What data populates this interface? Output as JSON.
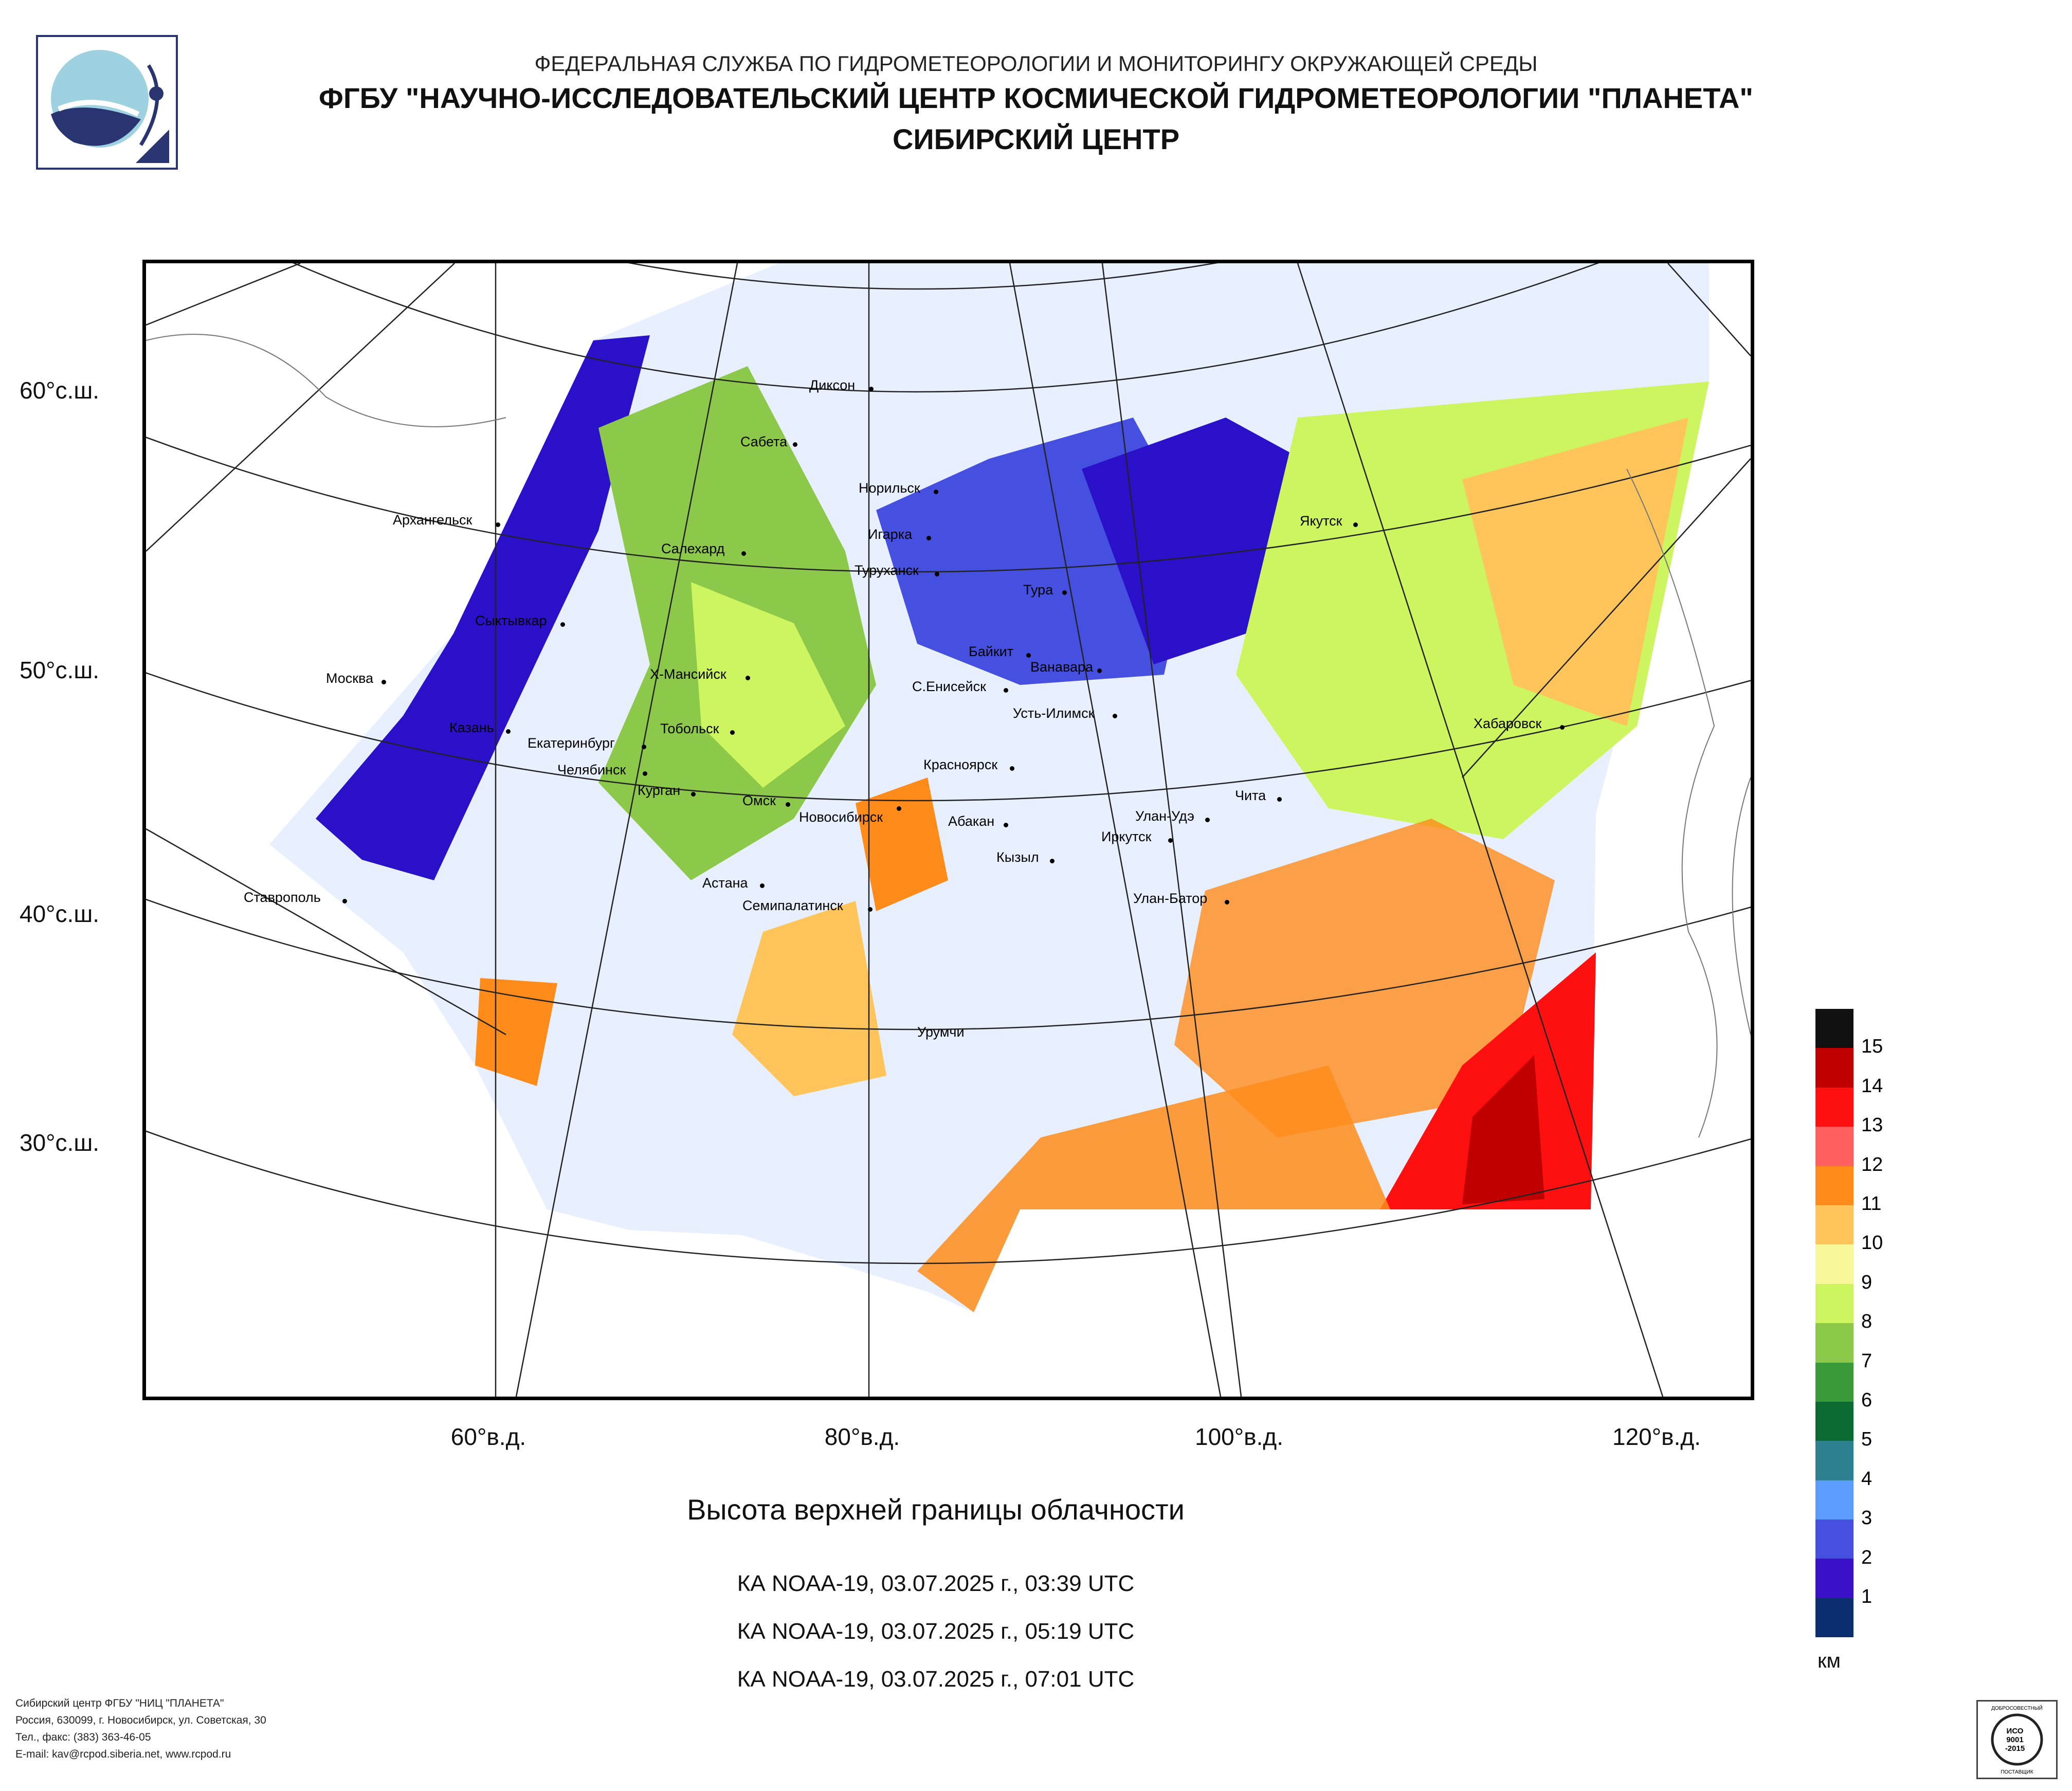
{
  "header": {
    "line1": "ФЕДЕРАЛЬНАЯ СЛУЖБА ПО ГИДРОМЕТЕОРОЛОГИИ И МОНИТОРИНГУ ОКРУЖАЮЩЕЙ СРЕДЫ",
    "line2": "ФГБУ \"НАУЧНО-ИССЛЕДОВАТЕЛЬСКИЙ ЦЕНТР КОСМИЧЕСКОЙ ГИДРОМЕТЕОРОЛОГИИ \"ПЛАНЕТА\"",
    "line3": "СИБИРСКИЙ ЦЕНТР"
  },
  "map": {
    "lat_labels": [
      "60°с.ш.",
      "50°с.ш.",
      "40°с.ш.",
      "30°с.ш."
    ],
    "lon_labels": [
      "60°в.д.",
      "80°в.д.",
      "100°в.д.",
      "120°в.д."
    ],
    "cities": [
      "Диксон",
      "Сабета",
      "Норильск",
      "Игарка",
      "Туруханск",
      "Тура",
      "Якутск",
      "Архангельск",
      "Салехард",
      "Сыктывкар",
      "Байкит",
      "Ванавара",
      "Х-Мансийск",
      "С.Енисейск",
      "Москва",
      "Усть-Илимск",
      "Хабаровск",
      "Казань",
      "Тобольск",
      "Екатеринбург",
      "Челябинск",
      "Курган",
      "Красноярск",
      "Чита",
      "Омск",
      "Новосибирск",
      "Абакан",
      "Улан-Удэ",
      "Иркутск",
      "Кызыл",
      "Астана",
      "Ставрополь",
      "Семипалатинск",
      "Улан-Батор",
      "Урумчи"
    ]
  },
  "legend": {
    "values": [
      "15",
      "14",
      "13",
      "12",
      "11",
      "10",
      "9",
      "8",
      "7",
      "6",
      "5",
      "4",
      "3",
      "2",
      "1"
    ],
    "colors": [
      "#111111",
      "#c00000",
      "#ff1010",
      "#ff5f5f",
      "#ff8c1a",
      "#ffc45a",
      "#f8f89a",
      "#ccf560",
      "#8cc84a",
      "#3a9a3a",
      "#0b6a30",
      "#2d8090",
      "#5a9cff",
      "#4650e0",
      "#3a10c8",
      "#0b2e6e"
    ],
    "unit": "км"
  },
  "title": "Высота верхней границы облачности",
  "passes": [
    "КА NOAA-19, 03.07.2025 г., 03:39 UTC",
    "КА NOAA-19, 03.07.2025 г., 05:19 UTC",
    "КА NOAA-19, 03.07.2025 г., 07:01 UTC"
  ],
  "footer": {
    "line1": "Сибирский центр ФГБУ \"НИЦ \"ПЛАНЕТА\"",
    "line2": "Россия, 630099, г. Новосибирск, ул. Советская, 30",
    "line3": "Тел., факс: (383) 363-46-05",
    "line4": "E-mail: kav@rcpod.siberia.net, www.rcpod.ru"
  },
  "cert": {
    "top": "ДОБРОСОВЕСТНЫЙ",
    "mid1": "ИСО",
    "mid2": "9001",
    "mid3": "-2015",
    "bottom": "ПОСТАВЩИК"
  }
}
